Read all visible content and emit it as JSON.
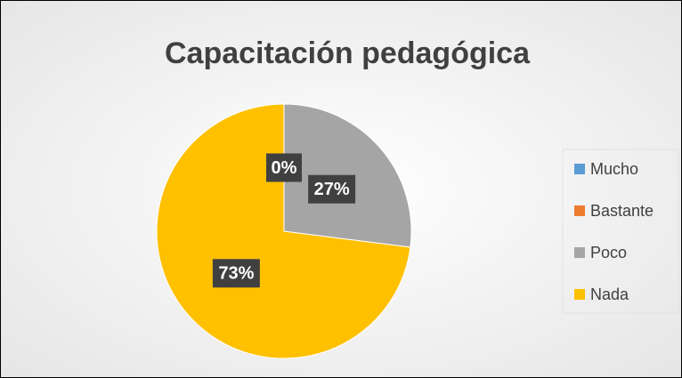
{
  "chart_data": {
    "type": "pie",
    "title": "Capacitación pedagógica",
    "categories": [
      "Mucho",
      "Bastante",
      "Poco",
      "Nada"
    ],
    "values": [
      0,
      0,
      27,
      73
    ],
    "value_labels": [
      "0%",
      "0%",
      "27%",
      "73%"
    ],
    "colors": [
      "#5b9bd5",
      "#ed7d31",
      "#a5a5a5",
      "#ffc000"
    ],
    "legend": "right"
  }
}
